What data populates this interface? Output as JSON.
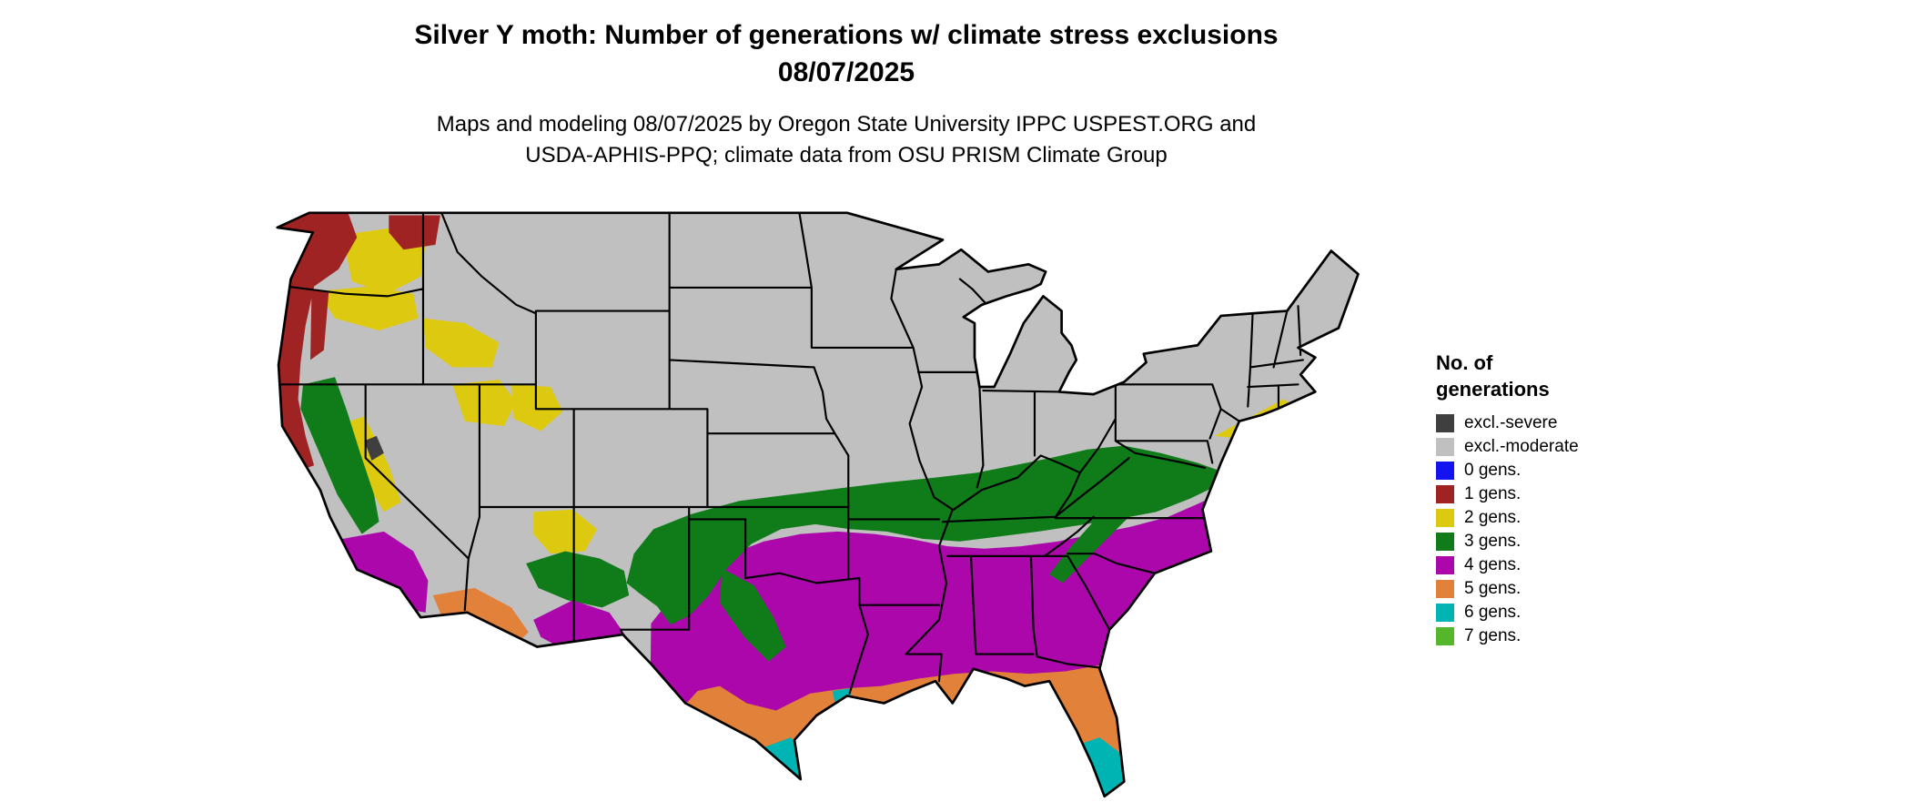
{
  "title": {
    "line1": "Silver Y moth: Number of generations w/ climate stress exclusions",
    "line2": "08/07/2025"
  },
  "subtitle": {
    "line1": "Maps and modeling 08/07/2025 by Oregon State University IPPC USPEST.ORG and",
    "line2": "USDA-APHIS-PPQ; climate data from OSU PRISM Climate Group"
  },
  "legend": {
    "title_line1": "No. of",
    "title_line2": "generations",
    "items": [
      {
        "label": "excl.-severe",
        "key": "excl_severe"
      },
      {
        "label": "excl.-moderate",
        "key": "excl_moderate"
      },
      {
        "label": "0 gens.",
        "key": "gens0"
      },
      {
        "label": "1 gens.",
        "key": "gens1"
      },
      {
        "label": "2 gens.",
        "key": "gens2"
      },
      {
        "label": "3 gens.",
        "key": "gens3"
      },
      {
        "label": "4 gens.",
        "key": "gens4"
      },
      {
        "label": "5 gens.",
        "key": "gens5"
      },
      {
        "label": "6 gens.",
        "key": "gens6"
      },
      {
        "label": "7 gens.",
        "key": "gens7"
      }
    ]
  },
  "palette": {
    "excl_severe": "#3f3f3f",
    "excl_moderate": "#c0c0c0",
    "gens0": "#1414f0",
    "gens1": "#a02323",
    "gens2": "#ddca10",
    "gens3": "#0f7c19",
    "gens4": "#ab07ab",
    "gens5": "#e2813a",
    "gens6": "#00b4b4",
    "gens7": "#55b52b"
  },
  "map": {
    "region": "Contiguous United States",
    "border_color": "#000000"
  }
}
